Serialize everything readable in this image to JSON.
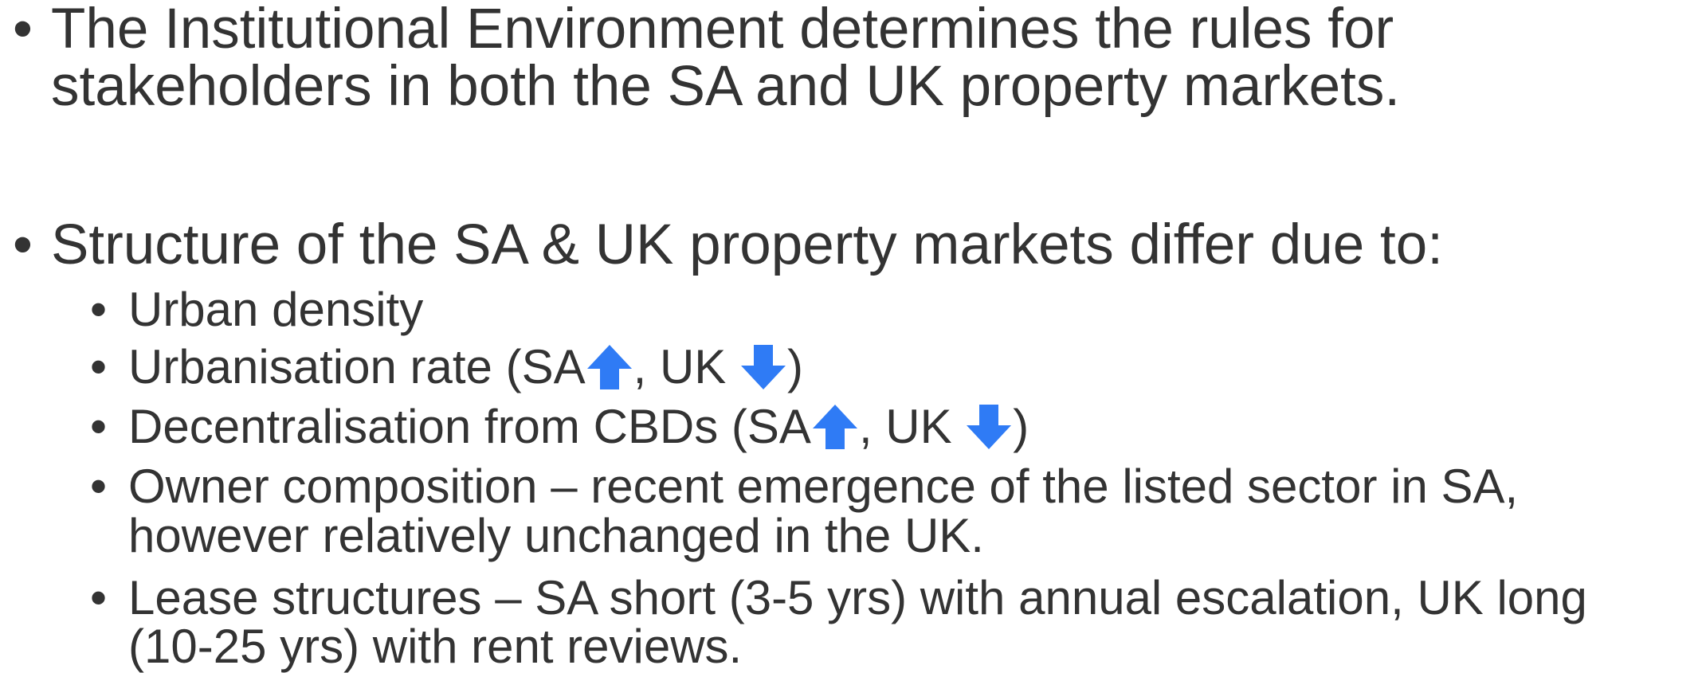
{
  "bullets": [
    {
      "lines": [
        "The Institutional Environment determines the rules for",
        "stakeholders in both the SA and UK property markets."
      ]
    },
    {
      "lines": [
        "Structure of the SA & UK property markets differ due to:"
      ],
      "items": [
        {
          "lines": [
            "Urban density"
          ]
        },
        {
          "parts": [
            "Urbanisation rate (SA",
            ", UK ",
            ")"
          ]
        },
        {
          "parts": [
            "Decentralisation from CBDs (SA",
            ", UK ",
            ")"
          ]
        },
        {
          "lines": [
            "Owner composition – recent emergence of the listed sector in SA,",
            "however relatively unchanged in the UK."
          ]
        },
        {
          "lines": [
            "Lease structures – SA short (3-5 yrs) with annual escalation, UK long",
            "(10-25 yrs) with rent reviews."
          ]
        }
      ]
    }
  ]
}
